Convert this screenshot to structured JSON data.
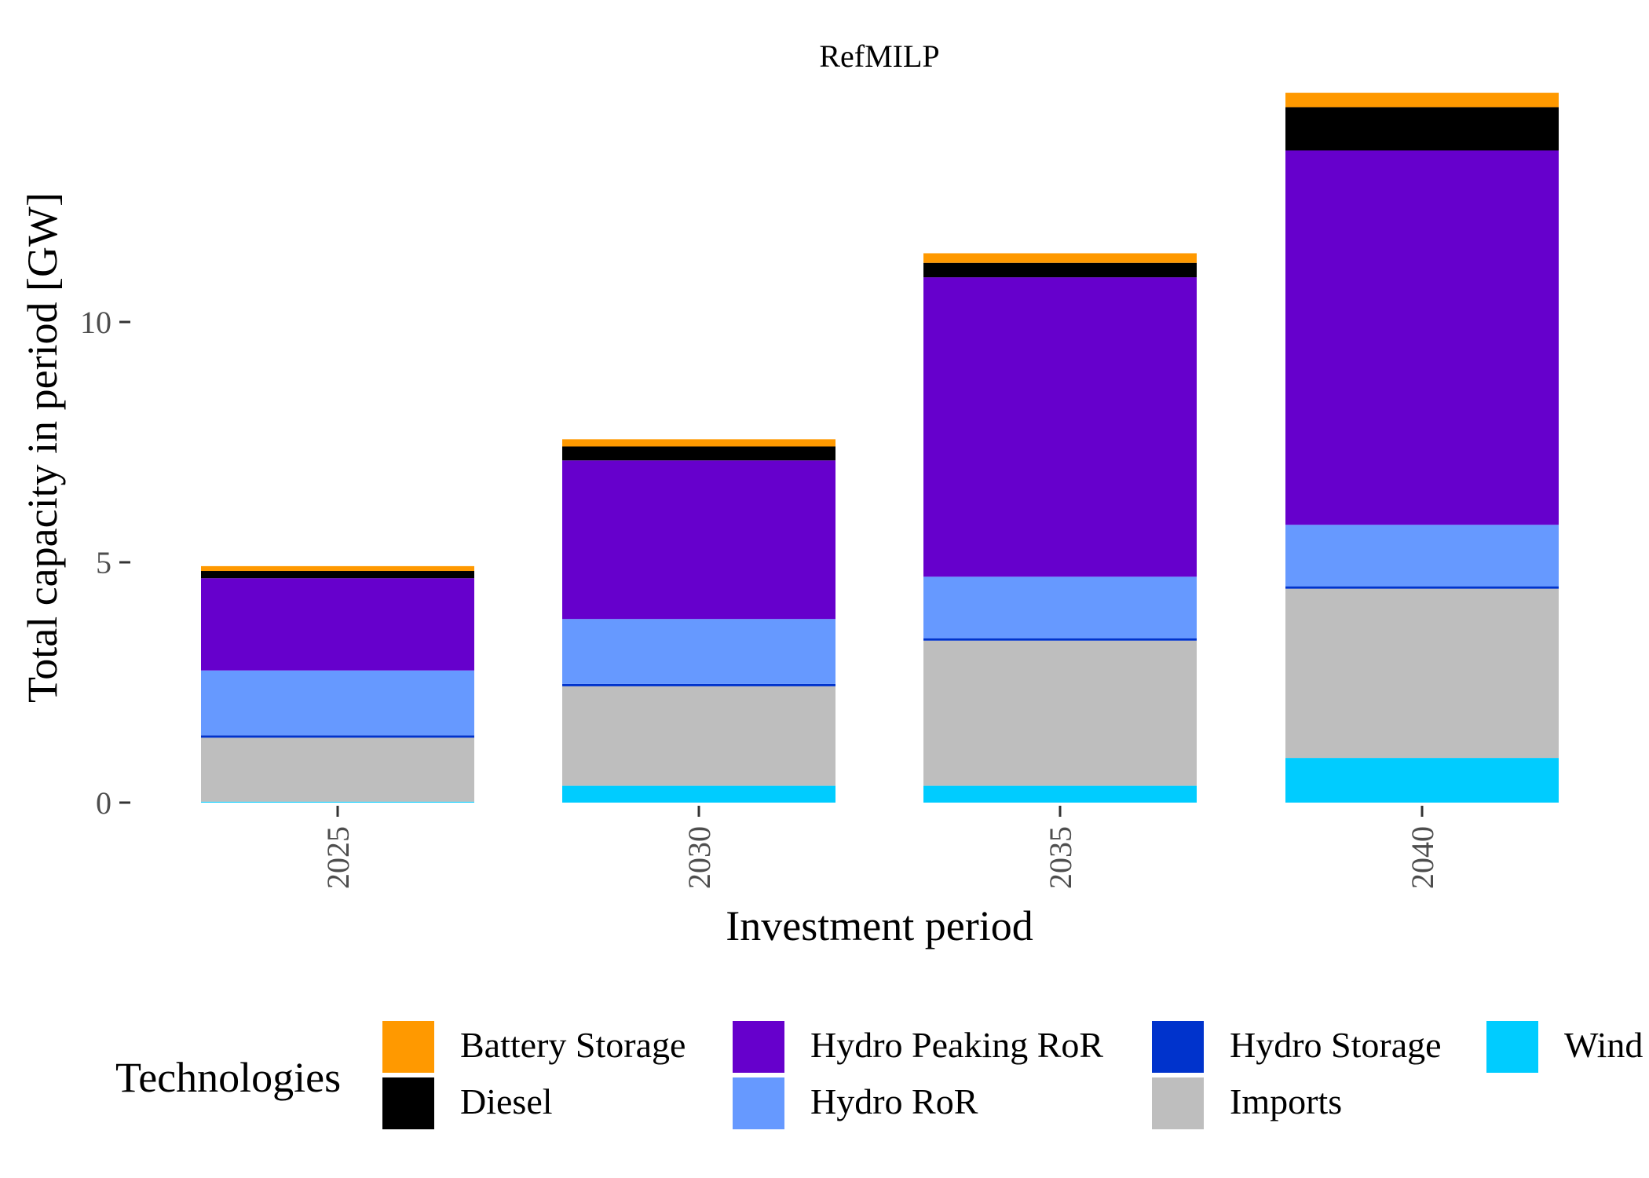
{
  "chart_data": {
    "type": "bar",
    "stacked": true,
    "title": "RefMILP",
    "xlabel": "Investment period",
    "ylabel": "Total capacity in period [GW]",
    "categories": [
      "2025",
      "2030",
      "2035",
      "2040"
    ],
    "ylim": [
      0,
      15
    ],
    "yticks": [
      0,
      5,
      10
    ],
    "grid": false,
    "legend": {
      "title": "Technologies",
      "position": "bottom",
      "entries": [
        "Battery Storage",
        "Diesel",
        "Hydro Peaking RoR",
        "Hydro RoR",
        "Hydro Storage",
        "Imports",
        "Wind"
      ]
    },
    "series": [
      {
        "name": "Wind",
        "color": "#00CCFF",
        "values": [
          0.02,
          0.35,
          0.35,
          0.93
        ]
      },
      {
        "name": "Imports",
        "color": "#BEBEBE",
        "values": [
          1.33,
          2.07,
          3.02,
          3.52
        ]
      },
      {
        "name": "Hydro Storage",
        "color": "#0033CC",
        "values": [
          0.05,
          0.05,
          0.05,
          0.05
        ]
      },
      {
        "name": "Hydro RoR",
        "color": "#6699FF",
        "values": [
          1.35,
          1.35,
          1.28,
          1.28
        ]
      },
      {
        "name": "Hydro Peaking RoR",
        "color": "#6600CC",
        "values": [
          1.92,
          3.3,
          6.23,
          7.79
        ]
      },
      {
        "name": "Diesel",
        "color": "#000000",
        "values": [
          0.15,
          0.29,
          0.3,
          0.9
        ]
      },
      {
        "name": "Battery Storage",
        "color": "#FF9900",
        "values": [
          0.1,
          0.15,
          0.2,
          0.3
        ]
      }
    ]
  }
}
